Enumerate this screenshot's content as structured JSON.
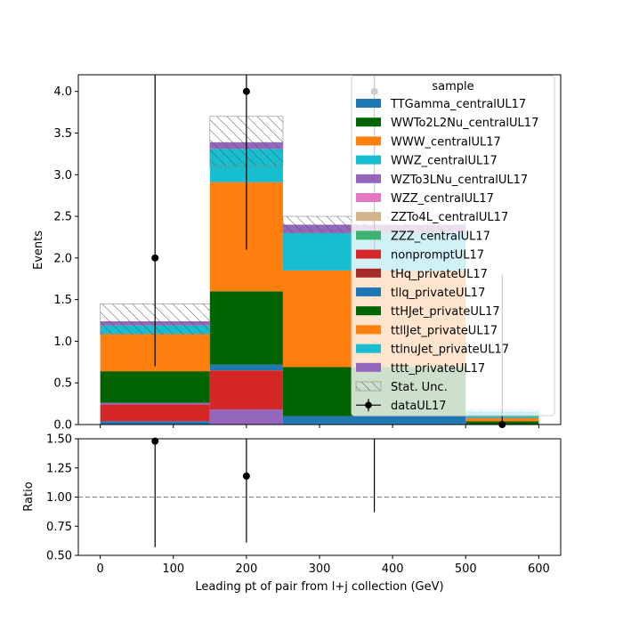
{
  "chart_data": [
    {
      "type": "bar",
      "stacked": true,
      "xlabel": "Leading pt of pair from l+j collection (GeV)",
      "ylabel": "Events",
      "bins": [
        [
          0,
          150
        ],
        [
          150,
          250
        ],
        [
          250,
          500
        ],
        [
          500,
          600
        ]
      ],
      "xlim": [
        -30,
        630
      ],
      "ylim": [
        0,
        4.2
      ],
      "yticks": [
        "0.0",
        "0.5",
        "1.0",
        "1.5",
        "2.0",
        "2.5",
        "3.0",
        "3.5",
        "4.0"
      ],
      "xticks": [
        "0",
        "100",
        "200",
        "300",
        "400",
        "500",
        "600"
      ],
      "legend": {
        "title": "sample",
        "position": "top-right",
        "entries": [
          {
            "label": "TTGamma_centralUL17",
            "color": "#1f77b4",
            "kind": "patch"
          },
          {
            "label": "WWTo2L2Nu_centralUL17",
            "color": "#006400",
            "kind": "patch"
          },
          {
            "label": "WWW_centralUL17",
            "color": "#ff7f0e",
            "kind": "patch"
          },
          {
            "label": "WWZ_centralUL17",
            "color": "#17becf",
            "kind": "patch"
          },
          {
            "label": "WZTo3LNu_centralUL17",
            "color": "#9467bd",
            "kind": "patch"
          },
          {
            "label": "WZZ_centralUL17",
            "color": "#e377c2",
            "kind": "patch"
          },
          {
            "label": "ZZTo4L_centralUL17",
            "color": "#d2b48c",
            "kind": "patch"
          },
          {
            "label": "ZZZ_centralUL17",
            "color": "#3cb371",
            "kind": "patch"
          },
          {
            "label": "nonpromptUL17",
            "color": "#d62728",
            "kind": "patch"
          },
          {
            "label": "tHq_privateUL17",
            "color": "#a52a2a",
            "kind": "patch"
          },
          {
            "label": "tllq_privateUL17",
            "color": "#1f77b4",
            "kind": "patch"
          },
          {
            "label": "ttHJet_privateUL17",
            "color": "#006400",
            "kind": "patch"
          },
          {
            "label": "ttllJet_privateUL17",
            "color": "#ff7f0e",
            "kind": "patch"
          },
          {
            "label": "ttlnuJet_privateUL17",
            "color": "#17becf",
            "kind": "patch"
          },
          {
            "label": "tttt_privateUL17",
            "color": "#9467bd",
            "kind": "patch"
          },
          {
            "label": "Stat. Unc.",
            "color": "#777777",
            "kind": "hatch"
          },
          {
            "label": "dataUL17",
            "color": "#000000",
            "kind": "errorbar"
          }
        ]
      },
      "series": [
        {
          "name": "TTGamma_centralUL17",
          "color": "#1f77b4",
          "values": [
            0.04,
            0.0,
            0.02,
            0.0
          ]
        },
        {
          "name": "WWTo2L2Nu_centralUL17",
          "color": "#006400",
          "values": [
            0.0,
            0.0,
            0.0,
            0.0
          ]
        },
        {
          "name": "nonpromptUL17",
          "color": "#d62728",
          "values": [
            0.2,
            0.0,
            0.0,
            0.0
          ]
        },
        {
          "name": "WZTo3LNu_centralUL17",
          "color": "#9467bd",
          "values": [
            0.02,
            0.18,
            0.0,
            0.0
          ]
        },
        {
          "name": "nonpromptUL17",
          "color": "#d62728",
          "values": [
            0.0,
            0.47,
            0.0,
            0.0
          ]
        },
        {
          "name": "tllq_privateUL17",
          "color": "#1f77b4",
          "values": [
            0.0,
            0.07,
            0.08,
            0.0
          ]
        },
        {
          "name": "ttHJet_privateUL17",
          "color": "#006400",
          "values": [
            0.38,
            0.88,
            0.59,
            0.04
          ]
        },
        {
          "name": "ttllJet_privateUL17",
          "color": "#ff7f0e",
          "values": [
            0.45,
            1.31,
            1.16,
            0.04
          ]
        },
        {
          "name": "ttlnuJet_privateUL17",
          "color": "#17becf",
          "values": [
            0.1,
            0.4,
            0.45,
            0.08
          ]
        },
        {
          "name": "tttt_privateUL17",
          "color": "#9467bd",
          "values": [
            0.05,
            0.08,
            0.1,
            0.0
          ]
        }
      ],
      "stat_unc": {
        "low": [
          1.08,
          3.1,
          2.3,
          0.13
        ],
        "high": [
          1.45,
          3.7,
          2.5,
          0.18
        ]
      },
      "data": {
        "name": "dataUL17",
        "x": [
          75,
          200,
          375,
          550
        ],
        "y": [
          2,
          4,
          4,
          0
        ],
        "yerr_low": [
          1.3,
          1.9,
          1.9,
          0
        ],
        "yerr_high": [
          2.6,
          3.4,
          3.4,
          1.8
        ]
      }
    },
    {
      "type": "scatter",
      "xlabel": "Leading pt of pair from l+j collection (GeV)",
      "ylabel": "Ratio",
      "xlim": [
        -30,
        630
      ],
      "ylim": [
        0.5,
        1.5
      ],
      "yticks": [
        "0.50",
        "0.75",
        "1.00",
        "1.25",
        "1.50"
      ],
      "xticks": [
        "0",
        "100",
        "200",
        "300",
        "400",
        "500",
        "600"
      ],
      "reference_line": 1.0,
      "points": [
        {
          "x": 75,
          "y": 1.48,
          "err_low": 0.91,
          "err_high": 1.7
        },
        {
          "x": 200,
          "y": 1.18,
          "err_low": 0.57,
          "err_high": 1.0
        },
        {
          "x": 375,
          "y": 1.6,
          "err_low": 0.73,
          "err_high": 1.2
        }
      ]
    }
  ]
}
